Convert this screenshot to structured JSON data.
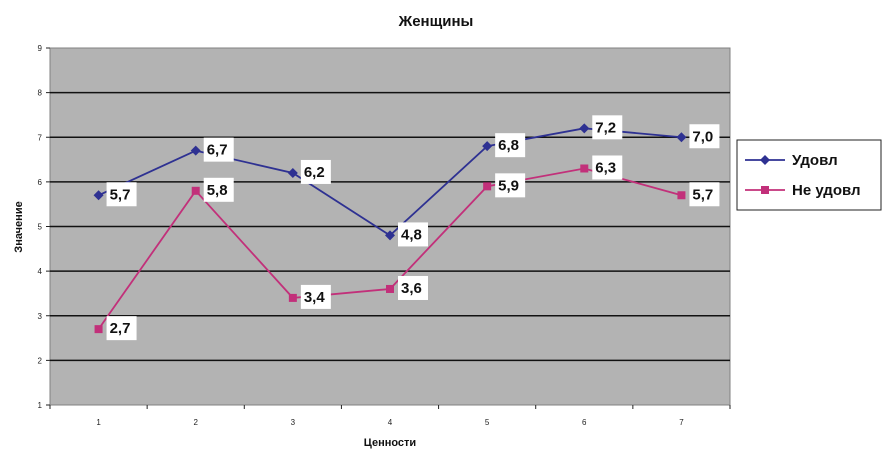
{
  "chart_data": {
    "type": "line",
    "title": "Женщины",
    "xlabel": "Ценности",
    "ylabel": "Значение",
    "categories": [
      "1",
      "2",
      "3",
      "4",
      "5",
      "6",
      "7"
    ],
    "yticks": [
      "1",
      "2",
      "3",
      "4",
      "5",
      "6",
      "7",
      "8",
      "9"
    ],
    "ylim": [
      1,
      9
    ],
    "grid": true,
    "legend_position": "right",
    "series": [
      {
        "name": "Удовл",
        "color": "#2e3192",
        "marker": "diamond",
        "values": [
          5.7,
          6.7,
          6.2,
          4.8,
          6.8,
          7.2,
          7.0
        ],
        "labels": [
          "5,7",
          "6,7",
          "6,2",
          "4,8",
          "6,8",
          "7,2",
          "7,0"
        ]
      },
      {
        "name": "Не удовл",
        "color": "#c2307a",
        "marker": "square",
        "values": [
          2.7,
          5.8,
          3.4,
          3.6,
          5.9,
          6.3,
          5.7
        ],
        "labels": [
          "2,7",
          "5,8",
          "3,4",
          "3,6",
          "5,9",
          "6,3",
          "5,7"
        ]
      }
    ]
  }
}
